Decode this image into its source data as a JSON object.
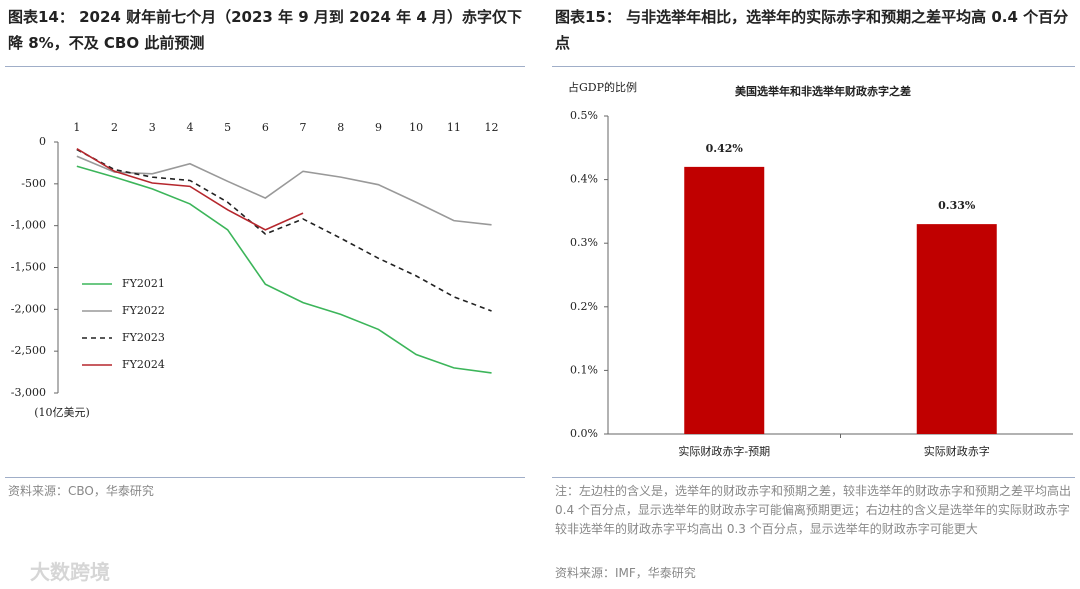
{
  "panels": [
    {
      "caption": "图表14：  2024 财年前七个月（2023 年 9 月到 2024 年 4 月）赤字仅下降 8%，不及 CBO 此前预测",
      "source": "资料来源：CBO，华泰研究"
    },
    {
      "caption": "图表15：  与非选举年相比，选举年的实际赤字和预期之差平均高 0.4 个百分点",
      "note": "注：左边柱的含义是，选举年的财政赤字和预期之差，较非选举年的财政赤字和预期之差平均高出 0.4 个百分点，显示选举年的财政赤字可能偏离预期更远；右边柱的含义是选举年的实际财政赤字较非选举年的财政赤字平均高出 0.3 个百分点，显示选举年的财政赤字可能更大",
      "source": "资料来源：IMF，华泰研究"
    }
  ],
  "watermark": "大数跨境",
  "chart_data": [
    {
      "type": "line",
      "y_label": "(10亿美元)",
      "categories": [
        "1",
        "2",
        "3",
        "4",
        "5",
        "6",
        "7",
        "8",
        "9",
        "10",
        "11",
        "12"
      ],
      "series": [
        {
          "name": "FY2021",
          "color": "#3cb55a",
          "values": [
            -290,
            -420,
            -560,
            -740,
            -1050,
            -1700,
            -1920,
            -2060,
            -2240,
            -2540,
            -2700,
            -2760
          ]
        },
        {
          "name": "FY2022",
          "color": "#999999",
          "values": [
            -170,
            -360,
            -380,
            -260,
            -470,
            -670,
            -350,
            -420,
            -510,
            -720,
            -940,
            -990
          ]
        },
        {
          "name": "FY2023",
          "color": "#222222",
          "dash": true,
          "values": [
            -90,
            -330,
            -420,
            -460,
            -720,
            -1100,
            -920,
            -1150,
            -1390,
            -1600,
            -1850,
            -2020
          ]
        },
        {
          "name": "FY2024",
          "color": "#b5272d",
          "values": [
            -80,
            -350,
            -490,
            -530,
            -810,
            -1050,
            -850,
            null,
            null,
            null,
            null,
            null
          ]
        }
      ],
      "ylim": [
        -3000,
        0
      ],
      "yticks": [
        0,
        -500,
        {
          "value": -1000,
          "label": "-1,000"
        },
        {
          "value": -1500,
          "label": "-1,500"
        },
        {
          "value": -2000,
          "label": "-2,000"
        },
        {
          "value": -2500,
          "label": "-2,500"
        },
        {
          "value": -3000,
          "label": "-3,000"
        }
      ],
      "legend": "lower-left"
    },
    {
      "type": "bar",
      "title": "美国选举年和非选举年财政赤字之差",
      "y_label": "占GDP的比例",
      "categories": [
        "实际财政赤字-预期",
        "实际财政赤字"
      ],
      "values": [
        0.42,
        0.33
      ],
      "value_labels": [
        "0.42%",
        "0.33%"
      ],
      "color": "#c00000",
      "ylim": [
        0,
        0.5
      ],
      "yticks": [
        {
          "value": 0,
          "label": "0.0%"
        },
        {
          "value": 0.1,
          "label": "0.1%"
        },
        {
          "value": 0.2,
          "label": "0.2%"
        },
        {
          "value": 0.3,
          "label": "0.3%"
        },
        {
          "value": 0.4,
          "label": "0.4%"
        },
        {
          "value": 0.5,
          "label": "0.5%"
        }
      ]
    }
  ]
}
